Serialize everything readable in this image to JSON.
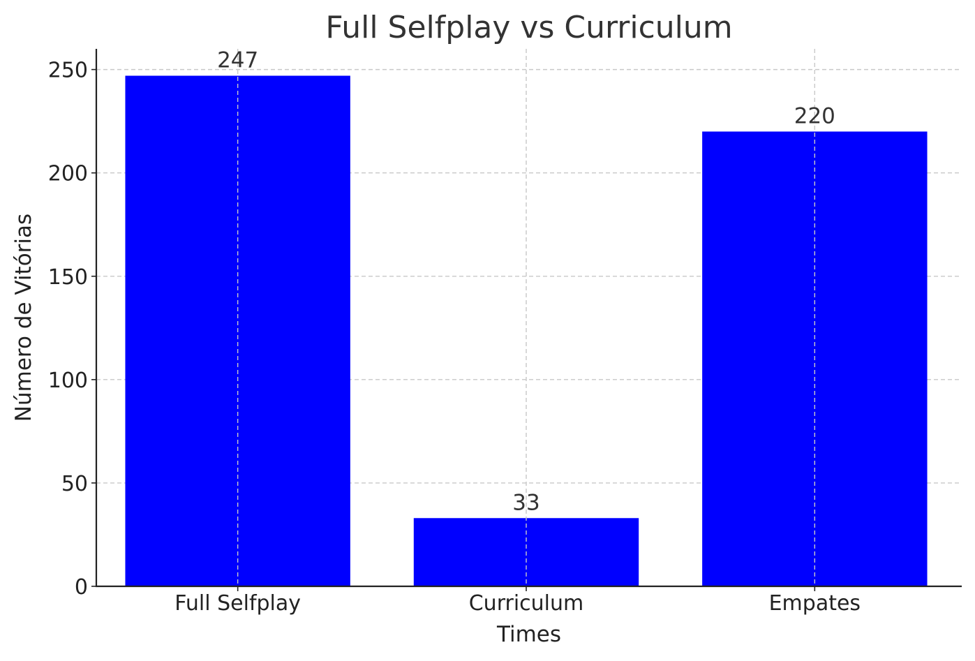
{
  "chart_data": {
    "type": "bar",
    "title": "Full Selfplay vs Curriculum",
    "xlabel": "Times",
    "ylabel": "Número de Vitórias",
    "categories": [
      "Full Selfplay",
      "Curriculum",
      "Empates"
    ],
    "values": [
      247,
      33,
      220
    ],
    "ylim": [
      0,
      260
    ],
    "yticks": [
      0,
      50,
      100,
      150,
      200,
      250
    ],
    "grid": true,
    "bar_color": "#0000ff",
    "data_labels": true
  }
}
